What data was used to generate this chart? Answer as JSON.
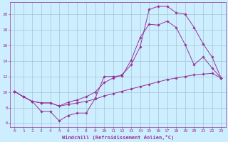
{
  "xlabel": "Windchill (Refroidissement éolien,°C)",
  "bg_color": "#cceeff",
  "grid_color": "#99bbcc",
  "line_color": "#993399",
  "xlim": [
    -0.5,
    23.5
  ],
  "ylim": [
    5.5,
    21.5
  ],
  "yticks": [
    6,
    8,
    10,
    12,
    14,
    16,
    18,
    20
  ],
  "xticks": [
    0,
    1,
    2,
    3,
    4,
    5,
    6,
    7,
    8,
    9,
    10,
    11,
    12,
    13,
    14,
    15,
    16,
    17,
    18,
    19,
    20,
    21,
    22,
    23
  ],
  "line1_x": [
    0,
    1,
    2,
    3,
    4,
    5,
    6,
    7,
    8,
    9,
    10,
    11,
    12,
    13,
    14,
    15,
    16,
    17,
    18,
    19,
    20,
    21,
    22,
    23
  ],
  "line1_y": [
    10.1,
    9.4,
    8.8,
    7.5,
    7.5,
    6.3,
    7.0,
    7.3,
    7.3,
    9.2,
    12.0,
    12.0,
    12.1,
    14.1,
    17.0,
    18.7,
    18.6,
    19.1,
    18.3,
    16.1,
    13.5,
    14.5,
    13.1,
    11.8
  ],
  "line2_x": [
    0,
    1,
    2,
    3,
    4,
    5,
    6,
    7,
    8,
    9,
    10,
    11,
    12,
    13,
    14,
    15,
    16,
    17,
    18,
    19,
    20,
    21,
    22,
    23
  ],
  "line2_y": [
    10.1,
    9.4,
    8.8,
    8.6,
    8.6,
    8.2,
    8.4,
    8.6,
    8.8,
    9.1,
    9.5,
    9.8,
    10.1,
    10.4,
    10.7,
    11.0,
    11.3,
    11.6,
    11.8,
    12.0,
    12.2,
    12.3,
    12.4,
    11.8
  ],
  "line3_x": [
    0,
    1,
    2,
    3,
    4,
    5,
    6,
    7,
    8,
    9,
    10,
    11,
    12,
    13,
    14,
    15,
    16,
    17,
    18,
    19,
    20,
    21,
    22,
    23
  ],
  "line3_y": [
    10.1,
    9.4,
    8.8,
    8.6,
    8.6,
    8.2,
    8.7,
    9.0,
    9.4,
    10.0,
    11.2,
    11.8,
    12.2,
    13.5,
    15.8,
    20.6,
    21.0,
    21.0,
    20.2,
    20.0,
    18.3,
    16.2,
    14.5,
    11.8
  ]
}
